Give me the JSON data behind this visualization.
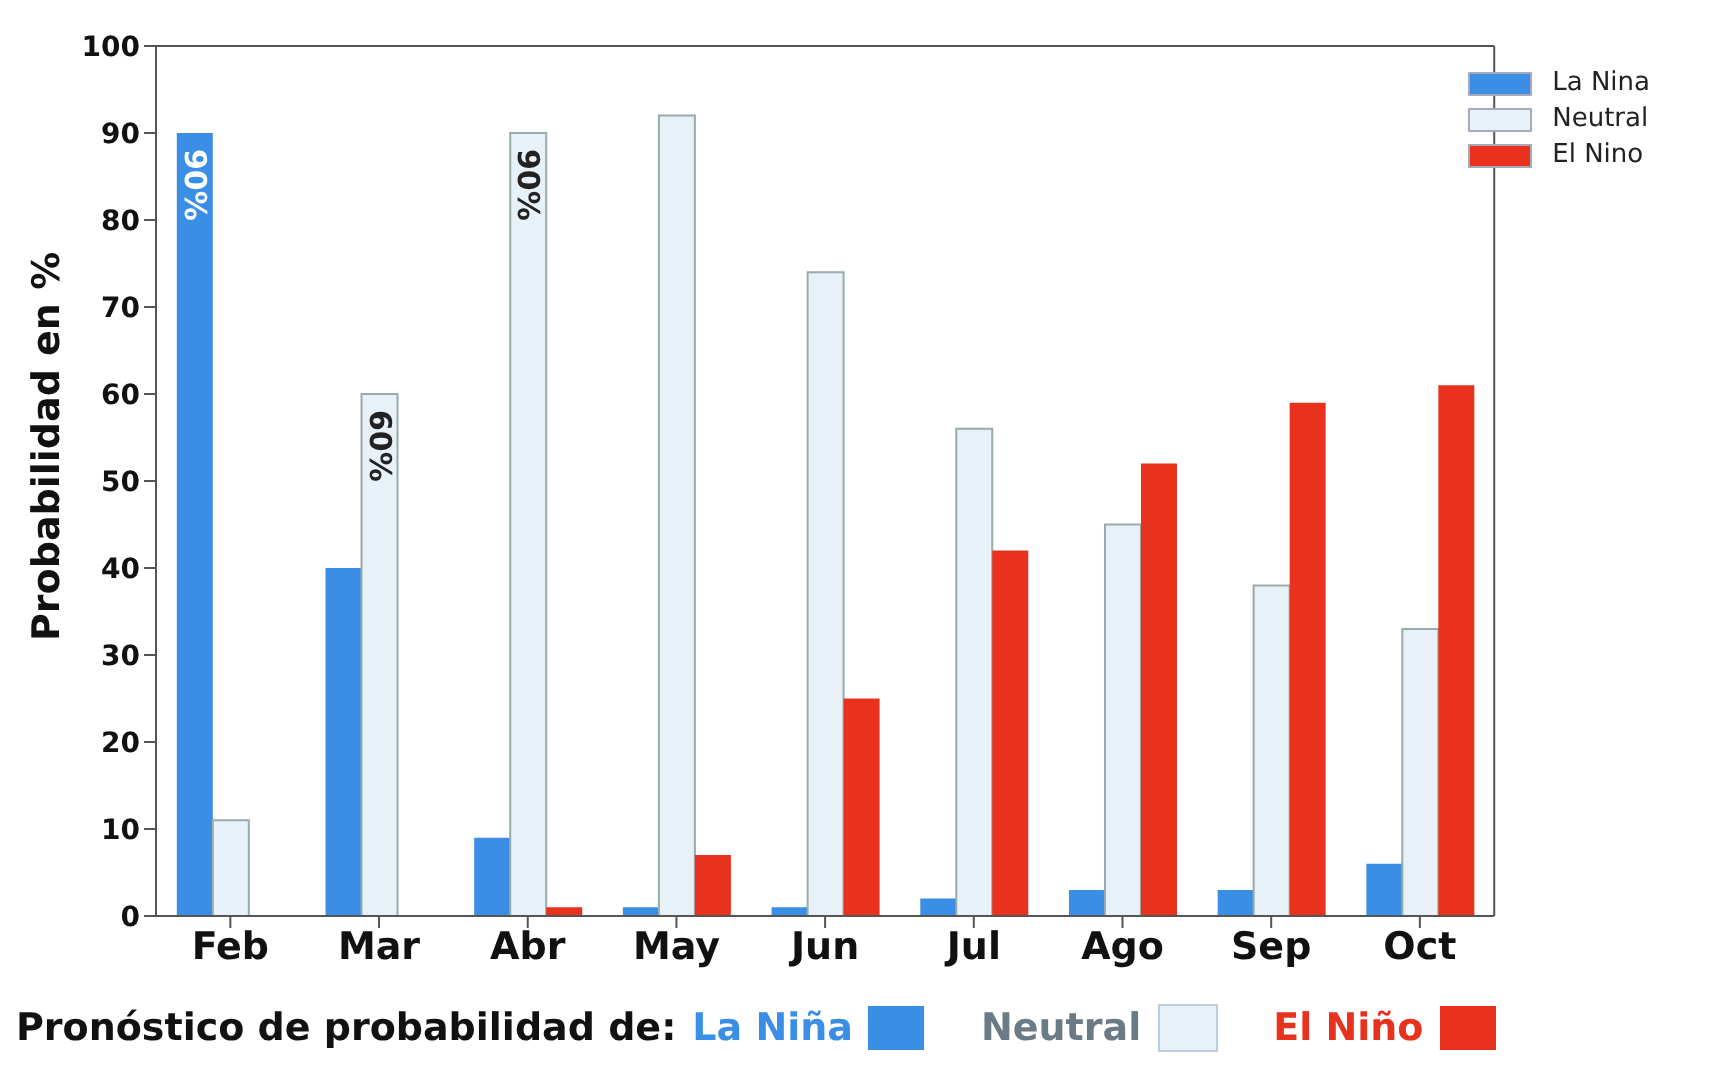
{
  "chart_data": {
    "type": "bar",
    "ylabel": "Probabilidad en %",
    "categories": [
      "Feb",
      "Mar",
      "Abr",
      "May",
      "Jun",
      "Jul",
      "Ago",
      "Sep",
      "Oct"
    ],
    "series": [
      {
        "name": "La Nina",
        "color": "#3a8ee6",
        "values": [
          90,
          40,
          9,
          1,
          1,
          2,
          3,
          3,
          6
        ],
        "value_labels": [
          "90%",
          null,
          null,
          null,
          null,
          null,
          null,
          null,
          null
        ]
      },
      {
        "name": "Neutral",
        "color": "#e8f1f8",
        "values": [
          11,
          60,
          90,
          92,
          74,
          56,
          45,
          38,
          33
        ],
        "value_labels": [
          null,
          "60%",
          "90%",
          null,
          null,
          null,
          null,
          null,
          null
        ]
      },
      {
        "name": "El Nino",
        "color": "#e8321e",
        "values": [
          0,
          0,
          1,
          7,
          25,
          42,
          52,
          59,
          61
        ]
      }
    ],
    "ylim": [
      0,
      100
    ],
    "yticks": [
      0,
      10,
      20,
      30,
      40,
      50,
      60,
      70,
      80,
      90,
      100
    ],
    "grid": false,
    "legend": "top right",
    "annotations": [
      "Pronóstico de probabilidad de:",
      "La Niña",
      "Neutral",
      "El Niño"
    ]
  }
}
